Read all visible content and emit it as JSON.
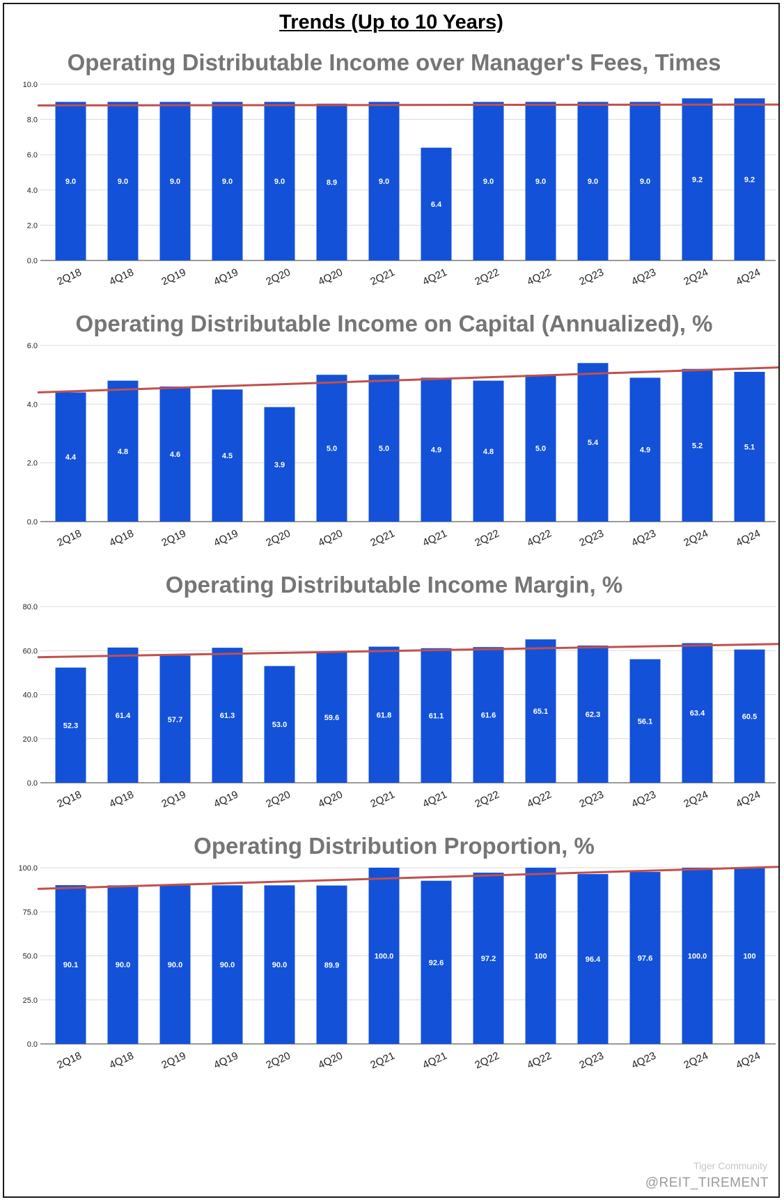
{
  "page": {
    "title": "Trends (Up to 10 Years)",
    "watermark": "@REIT_TIREMENT",
    "watermark_community": "Tiger Community"
  },
  "colors": {
    "bar": "#1351d8",
    "trend": "#c0504d",
    "grid": "#d9d9d9"
  },
  "chart_data": [
    {
      "type": "bar",
      "title": "Operating Distributable Income over Manager's Fees, Times",
      "categories": [
        "2Q18",
        "4Q18",
        "2Q19",
        "4Q19",
        "2Q20",
        "4Q20",
        "2Q21",
        "4Q21",
        "2Q22",
        "4Q22",
        "2Q23",
        "4Q23",
        "2Q24",
        "4Q24"
      ],
      "values": [
        9.0,
        9.0,
        9.0,
        9.0,
        9.0,
        8.9,
        9.0,
        6.4,
        9.0,
        9.0,
        9.0,
        9.0,
        9.2,
        9.2
      ],
      "labels": [
        "9.0",
        "9.0",
        "9.0",
        "9.0",
        "9.0",
        "8.9",
        "9.0",
        "6.4",
        "9.0",
        "9.0",
        "9.0",
        "9.0",
        "9.2",
        "9.2"
      ],
      "yticks": [
        "0.0",
        "2.0",
        "4.0",
        "6.0",
        "8.0",
        "10.0"
      ],
      "ylim": [
        0,
        10
      ],
      "trend": [
        8.8,
        8.85
      ],
      "xlabel": "",
      "ylabel": "",
      "grid": true
    },
    {
      "type": "bar",
      "title": "Operating Distributable Income on Capital (Annualized), %",
      "categories": [
        "2Q18",
        "4Q18",
        "2Q19",
        "4Q19",
        "2Q20",
        "4Q20",
        "2Q21",
        "4Q21",
        "2Q22",
        "4Q22",
        "2Q23",
        "4Q23",
        "2Q24",
        "4Q24"
      ],
      "values": [
        4.4,
        4.8,
        4.6,
        4.5,
        3.9,
        5.0,
        5.0,
        4.9,
        4.8,
        5.0,
        5.4,
        4.9,
        5.2,
        5.1
      ],
      "labels": [
        "4.4",
        "4.8",
        "4.6",
        "4.5",
        "3.9",
        "5.0",
        "5.0",
        "4.9",
        "4.8",
        "5.0",
        "5.4",
        "4.9",
        "5.2",
        "5.1"
      ],
      "yticks": [
        "0.0",
        "2.0",
        "4.0",
        "6.0"
      ],
      "ylim": [
        0,
        6
      ],
      "trend": [
        4.4,
        5.25
      ],
      "xlabel": "",
      "ylabel": "",
      "grid": true
    },
    {
      "type": "bar",
      "title": "Operating Distributable Income Margin, %",
      "categories": [
        "2Q18",
        "4Q18",
        "2Q19",
        "4Q19",
        "2Q20",
        "4Q20",
        "2Q21",
        "4Q21",
        "2Q22",
        "4Q22",
        "2Q23",
        "4Q23",
        "2Q24",
        "4Q24"
      ],
      "values": [
        52.3,
        61.4,
        57.7,
        61.3,
        53.0,
        59.6,
        61.8,
        61.1,
        61.6,
        65.1,
        62.3,
        56.1,
        63.4,
        60.5
      ],
      "labels": [
        "52.3",
        "61.4",
        "57.7",
        "61.3",
        "53.0",
        "59.6",
        "61.8",
        "61.1",
        "61.6",
        "65.1",
        "62.3",
        "56.1",
        "63.4",
        "60.5"
      ],
      "yticks": [
        "0.0",
        "20.0",
        "40.0",
        "60.0",
        "80.0"
      ],
      "ylim": [
        0,
        80
      ],
      "trend": [
        57.0,
        63.0
      ],
      "xlabel": "",
      "ylabel": "",
      "grid": true
    },
    {
      "type": "bar",
      "title": "Operating Distribution Proportion, %",
      "categories": [
        "2Q18",
        "4Q18",
        "2Q19",
        "4Q19",
        "2Q20",
        "4Q20",
        "2Q21",
        "4Q21",
        "2Q22",
        "4Q22",
        "2Q23",
        "4Q23",
        "2Q24",
        "4Q24"
      ],
      "values": [
        90.1,
        90.0,
        90.0,
        90.0,
        90.0,
        89.9,
        100.0,
        92.6,
        97.2,
        100,
        96.4,
        97.6,
        100.0,
        100
      ],
      "labels": [
        "90.1",
        "90.0",
        "90.0",
        "90.0",
        "90.0",
        "89.9",
        "100.0",
        "92.6",
        "97.2",
        "100",
        "96.4",
        "97.6",
        "100.0",
        "100"
      ],
      "yticks": [
        "0.0",
        "25.0",
        "50.0",
        "75.0",
        "100.0"
      ],
      "ylim": [
        0,
        100
      ],
      "trend": [
        88.0,
        100.5
      ],
      "xlabel": "",
      "ylabel": "",
      "grid": true
    }
  ]
}
